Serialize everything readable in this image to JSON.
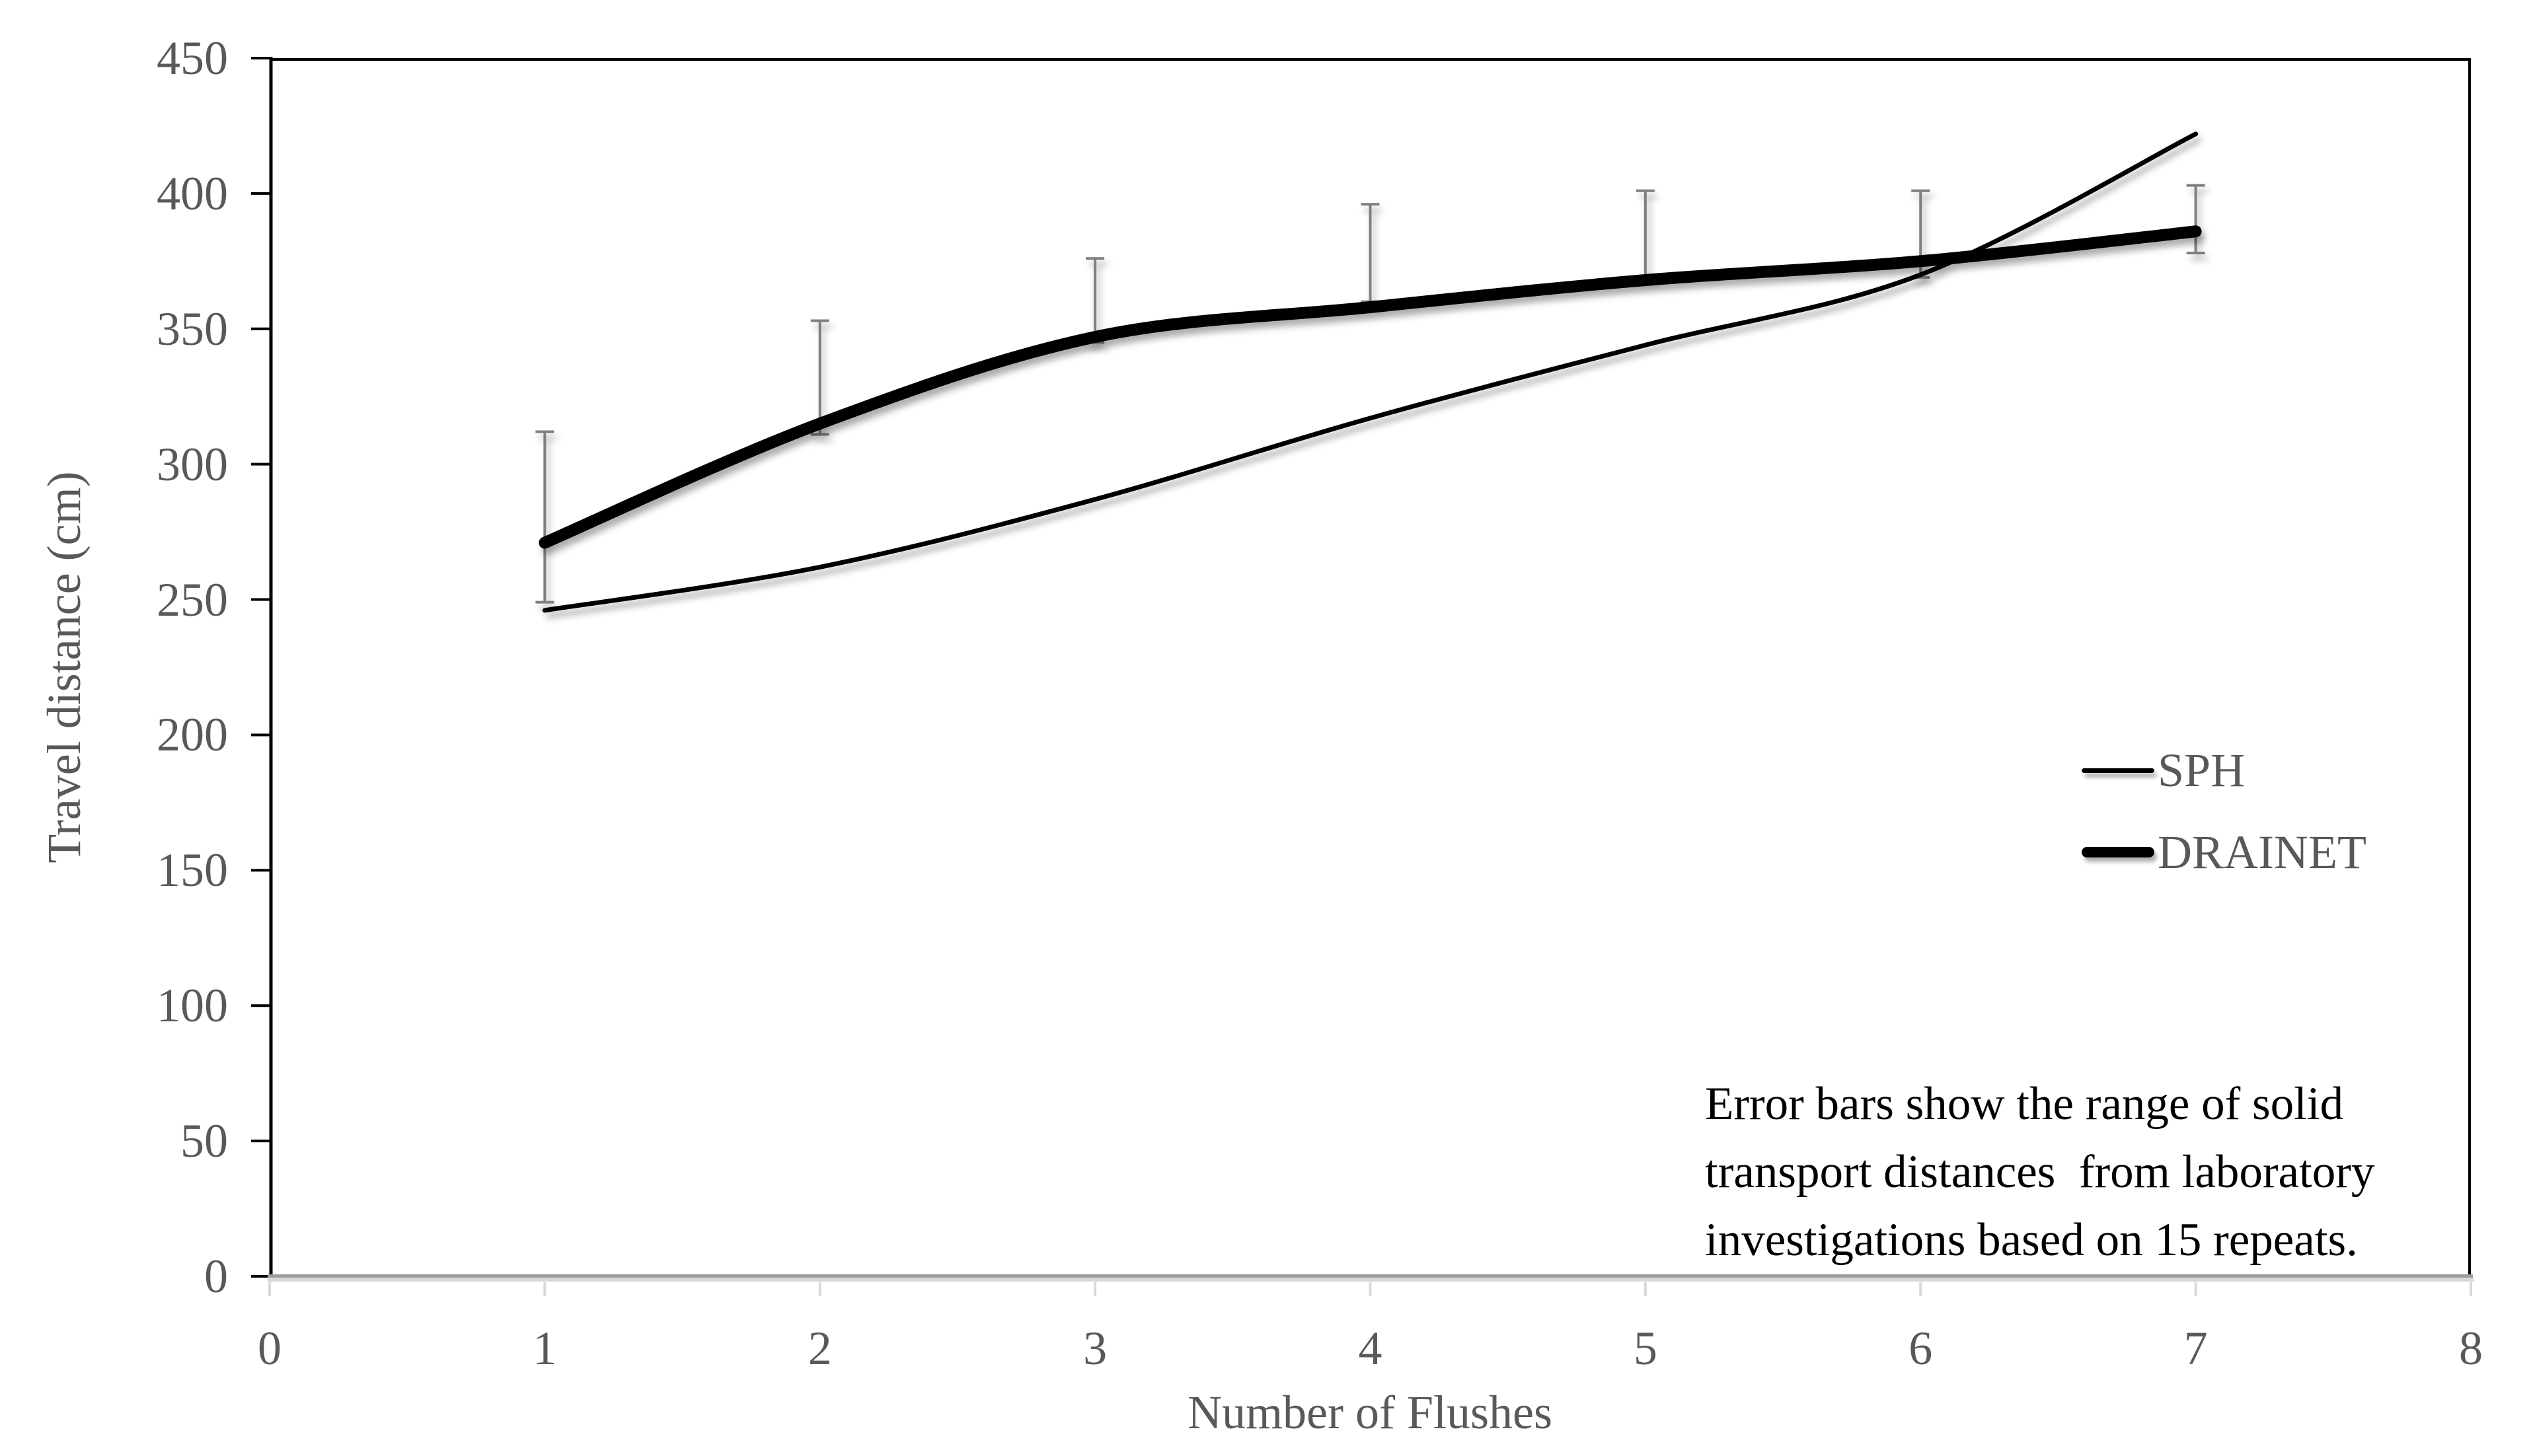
{
  "chart_data": {
    "type": "line",
    "title": "",
    "xlabel": "Number of Flushes",
    "ylabel": "Travel distance (cm)",
    "xlim": [
      0,
      8
    ],
    "ylim": [
      0,
      450
    ],
    "x_ticks": [
      0,
      1,
      2,
      3,
      4,
      5,
      6,
      7,
      8
    ],
    "y_ticks": [
      0,
      50,
      100,
      150,
      200,
      250,
      300,
      350,
      400,
      450
    ],
    "grid": false,
    "legend_position": "middle-right",
    "x": [
      1,
      2,
      3,
      4,
      5,
      6,
      7
    ],
    "series": [
      {
        "name": "SPH",
        "values": [
          246,
          262,
          287,
          317,
          344,
          370,
          422
        ],
        "color": "#000000",
        "stroke_width": 7
      },
      {
        "name": "DRAINET",
        "values": [
          271,
          315,
          347,
          358,
          368,
          375,
          386
        ],
        "color": "#000000",
        "stroke_width": 18
      }
    ],
    "error_bars": {
      "x": [
        1,
        2,
        3,
        4,
        5,
        6,
        7
      ],
      "low": [
        249,
        311,
        345,
        360,
        369,
        369,
        378
      ],
      "high": [
        312,
        353,
        376,
        396,
        401,
        401,
        403
      ],
      "color": "#7f7f7f"
    }
  },
  "annotation": {
    "lines": [
      "Error bars show the range of solid",
      "transport distances  from laboratory",
      "investigations based on 15 repeats."
    ]
  },
  "colors": {
    "background": "#ffffff",
    "label_text": "#595959",
    "annotation_text": "#000000",
    "axis_line": "#000000",
    "x_axis_line_dark": "#9d9d9d",
    "x_axis_line_light": "#d9d9d9",
    "x_tick": "#d9d9d9",
    "error_bar": "#7f7f7f"
  }
}
